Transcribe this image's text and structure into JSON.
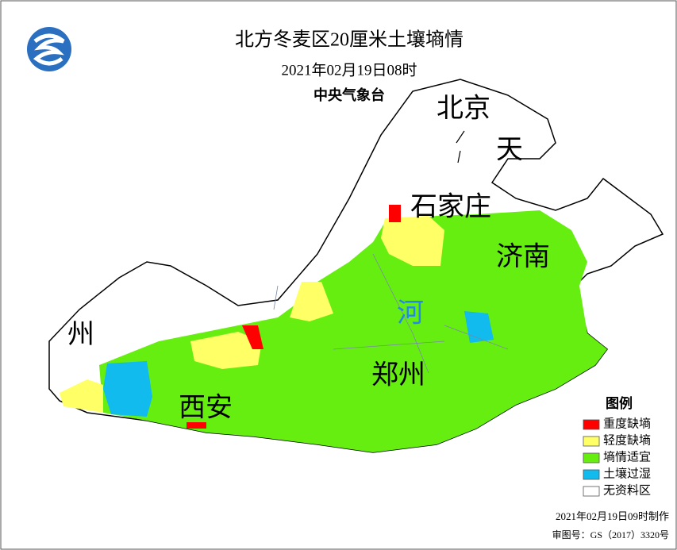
{
  "header": {
    "title": "北方冬麦区20厘米土壤墒情",
    "date": "2021年02月19日08时",
    "agency": "中央气象台"
  },
  "map": {
    "labels": [
      "北京",
      "天",
      "石家庄",
      "济南",
      "河",
      "郑州",
      "西安",
      "州"
    ]
  },
  "legend": {
    "title": "图例",
    "items": [
      {
        "label": "重度缺墒",
        "color": "#ff0000"
      },
      {
        "label": "轻度缺墒",
        "color": "#ffff66"
      },
      {
        "label": "墒情适宜",
        "color": "#66ee11"
      },
      {
        "label": "土壤过湿",
        "color": "#11bbee"
      },
      {
        "label": "无资料区",
        "color": "#ffffff"
      }
    ]
  },
  "footer": {
    "made": "2021年02月19日09时制作",
    "approval": "审图号：GS（2017）3320号"
  }
}
